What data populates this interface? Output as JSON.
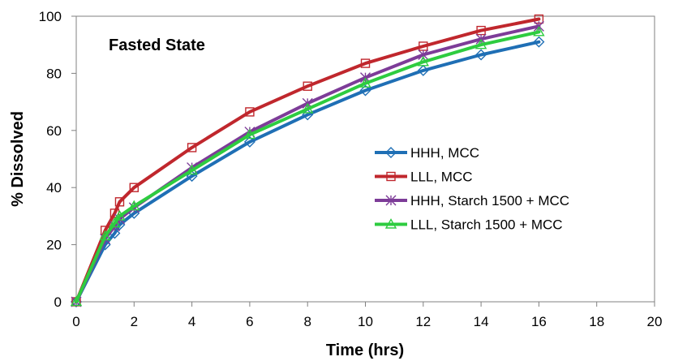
{
  "chart_data": {
    "type": "line",
    "title": "",
    "annotation": "Fasted State",
    "xlabel": "Time (hrs)",
    "ylabel": "% Dissolved",
    "xlim": [
      0,
      20
    ],
    "ylim": [
      0,
      100
    ],
    "x_ticks": [
      0,
      2,
      4,
      6,
      8,
      10,
      12,
      14,
      16,
      18,
      20
    ],
    "y_ticks": [
      0,
      20,
      40,
      60,
      80,
      100
    ],
    "grid": false,
    "legend_position": "center-right",
    "x": [
      0,
      1,
      1.33,
      1.5,
      2,
      4,
      6,
      8,
      10,
      12,
      14,
      16
    ],
    "series": [
      {
        "name": "HHH, MCC",
        "color": "#1f6fb5",
        "marker": "diamond",
        "values": [
          0,
          20,
          24,
          27,
          31,
          44,
          56,
          65.5,
          74,
          81,
          86.5,
          91
        ]
      },
      {
        "name": "LLL, MCC",
        "color": "#c0272d",
        "marker": "square",
        "values": [
          0,
          25,
          31,
          35,
          40,
          54,
          66.5,
          75.5,
          83.5,
          89.5,
          95,
          99
        ]
      },
      {
        "name": "HHH, Starch 1500 + MCC",
        "color": "#7d3c98",
        "marker": "asterisk",
        "values": [
          0,
          22,
          26.5,
          29,
          33,
          47,
          59.5,
          69.5,
          78.5,
          86.5,
          92,
          96.5
        ]
      },
      {
        "name": "LLL, Starch 1500 + MCC",
        "color": "#2ecc40",
        "marker": "triangle",
        "values": [
          0,
          23,
          27.5,
          30,
          33.5,
          46,
          58.5,
          67.5,
          76.5,
          84,
          90,
          94.5
        ]
      }
    ]
  }
}
